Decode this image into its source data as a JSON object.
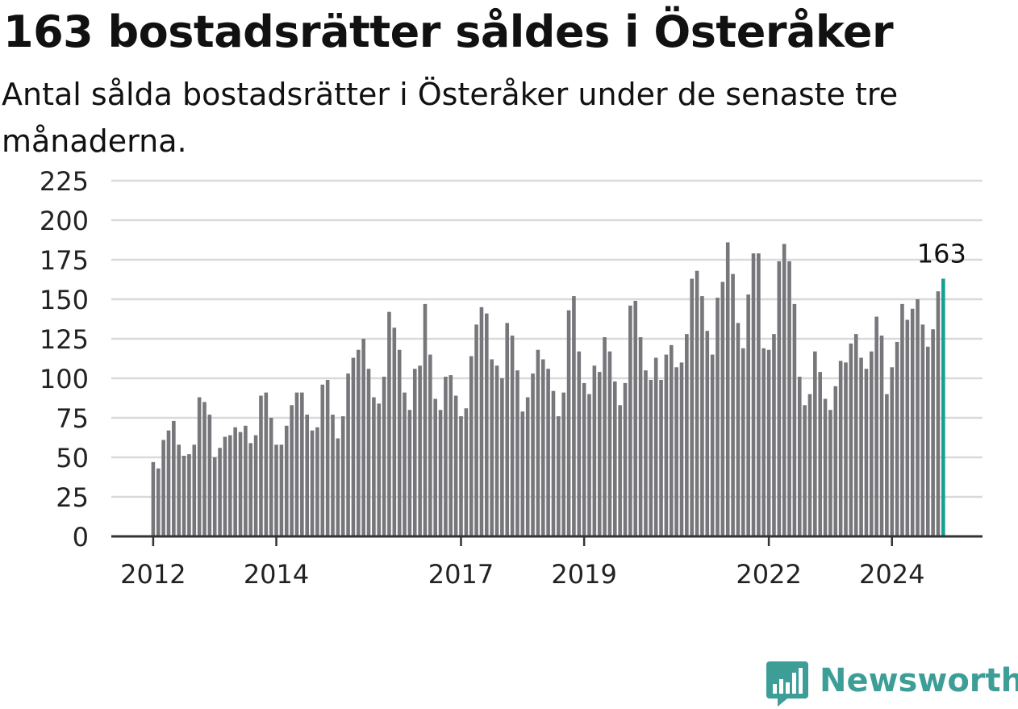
{
  "title": "163 bostadsrätter såldes i Österåker",
  "subtitle": "Antal sålda bostadsrätter i Österåker under de senaste tre månaderna.",
  "brand": {
    "name": "Newsworthy",
    "icon": "newsworthy-bar-chart-icon",
    "color": "#3c9e97"
  },
  "chart_data": {
    "type": "bar",
    "ylim": [
      0,
      225
    ],
    "y_ticks": [
      0,
      25,
      50,
      75,
      100,
      125,
      150,
      175,
      200,
      225
    ],
    "x_tick_labels": [
      "2012",
      "2014",
      "2017",
      "2019",
      "2022",
      "2024"
    ],
    "highlight_label": "163",
    "colors": {
      "bar": "#77777b",
      "highlight": "#17a092",
      "grid": "#d9d9d9",
      "axis": "#333333"
    },
    "grid": true,
    "legend": "none",
    "start": "2012-01",
    "values": [
      47,
      43,
      61,
      67,
      73,
      58,
      51,
      52,
      58,
      88,
      85,
      77,
      50,
      56,
      63,
      64,
      69,
      66,
      70,
      59,
      64,
      89,
      91,
      75,
      58,
      58,
      70,
      83,
      91,
      91,
      77,
      67,
      69,
      96,
      99,
      77,
      62,
      76,
      103,
      113,
      118,
      125,
      106,
      88,
      84,
      101,
      142,
      132,
      118,
      91,
      80,
      106,
      108,
      147,
      115,
      87,
      80,
      101,
      102,
      89,
      76,
      81,
      114,
      134,
      145,
      141,
      112,
      108,
      100,
      135,
      127,
      105,
      79,
      88,
      103,
      118,
      112,
      106,
      92,
      76,
      91,
      143,
      152,
      117,
      97,
      90,
      108,
      104,
      126,
      117,
      98,
      83,
      97,
      146,
      149,
      126,
      105,
      99,
      113,
      99,
      115,
      121,
      107,
      110,
      128,
      163,
      168,
      152,
      130,
      115,
      151,
      161,
      186,
      166,
      135,
      119,
      153,
      179,
      179,
      119,
      118,
      128,
      174,
      185,
      174,
      147,
      101,
      83,
      90,
      117,
      104,
      87,
      80,
      95,
      111,
      110,
      122,
      128,
      113,
      106,
      117,
      139,
      127,
      90,
      107,
      123,
      147,
      137,
      144,
      150,
      134,
      120,
      131,
      155,
      163
    ]
  }
}
